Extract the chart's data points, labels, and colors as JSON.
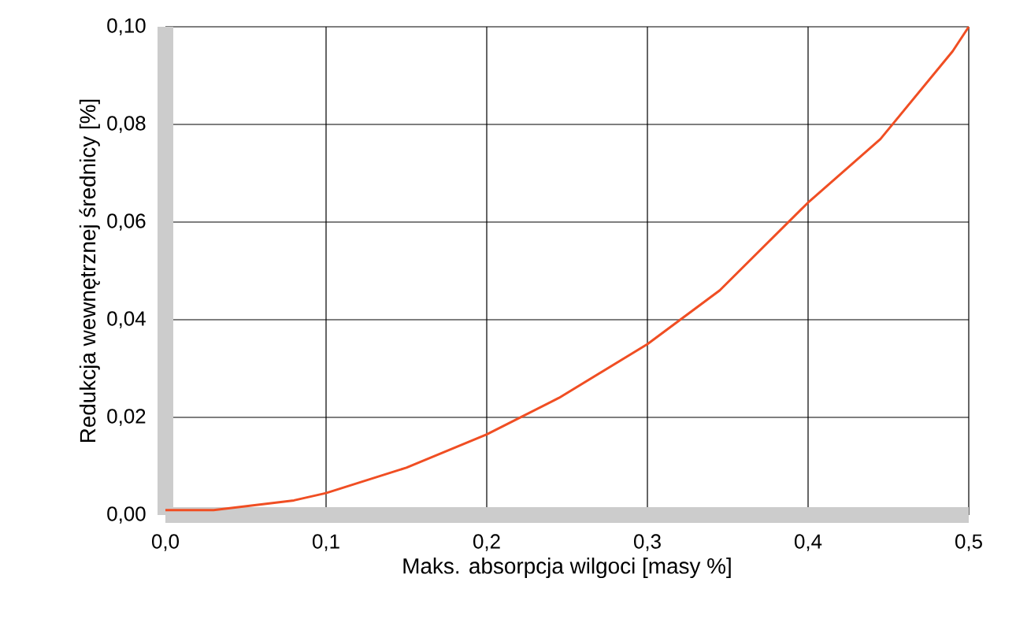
{
  "chart_data": {
    "type": "line",
    "xlabel": "Maks. absorpcja wilgoci [masy %]",
    "ylabel": "Redukcja  wewnętrznej średnicy [%]",
    "x": [
      0,
      0.03,
      0.08,
      0.1,
      0.15,
      0.2,
      0.245,
      0.3,
      0.345,
      0.4,
      0.445,
      0.49,
      0.5
    ],
    "series": [
      {
        "color": "#f04e23",
        "values": [
          0.001,
          0.001,
          0.003,
          0.0045,
          0.0097,
          0.0165,
          0.024,
          0.035,
          0.046,
          0.064,
          0.077,
          0.095,
          0.1
        ]
      }
    ],
    "xlim": [
      0,
      0.5
    ],
    "ylim": [
      0,
      0.1
    ],
    "xticks": [
      {
        "value": 0,
        "label": "0,0"
      },
      {
        "value": 0.1,
        "label": "0,1"
      },
      {
        "value": 0.2,
        "label": "0,2"
      },
      {
        "value": 0.3,
        "label": "0,3"
      },
      {
        "value": 0.4,
        "label": "0,4"
      },
      {
        "value": 0.5,
        "label": "0,5"
      }
    ],
    "yticks": [
      {
        "value": 0,
        "label": "0,00"
      },
      {
        "value": 0.02,
        "label": "0,02"
      },
      {
        "value": 0.04,
        "label": "0,04"
      },
      {
        "value": 0.06,
        "label": "0,06"
      },
      {
        "value": 0.08,
        "label": "0,08"
      },
      {
        "value": 0.1,
        "label": "0,10"
      }
    ],
    "grid": true,
    "marker": "none",
    "line_style": "solid"
  }
}
